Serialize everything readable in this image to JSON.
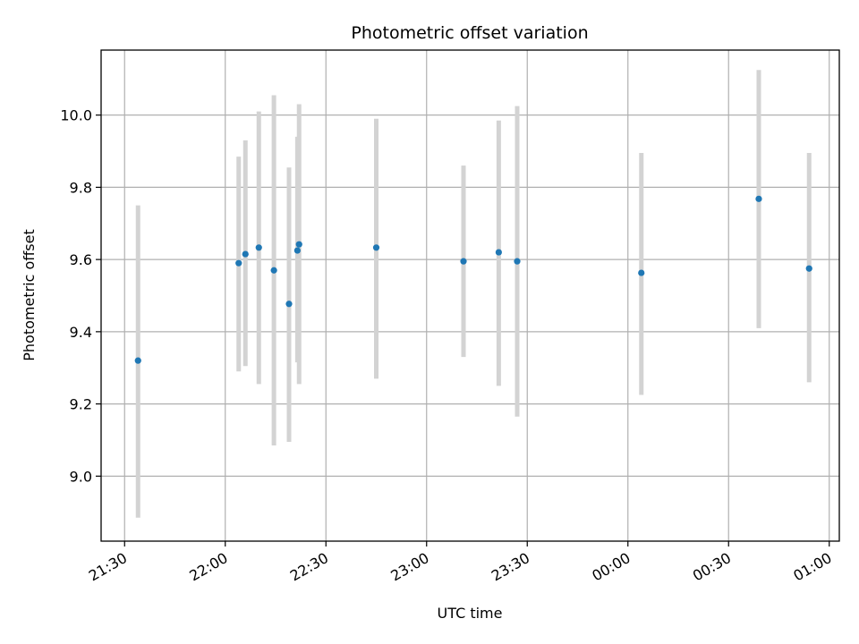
{
  "chart_data": {
    "type": "scatter",
    "title": "Photometric offset variation",
    "xlabel": "UTC time",
    "ylabel": "Photometric offset",
    "x_ticks": [
      "21:30",
      "22:00",
      "22:30",
      "23:00",
      "23:30",
      "00:00",
      "00:30",
      "01:00"
    ],
    "x_tick_minutes": [
      1290,
      1320,
      1350,
      1380,
      1410,
      1440,
      1470,
      1500
    ],
    "y_ticks": [
      "9.0",
      "9.2",
      "9.4",
      "9.6",
      "9.8",
      "10.0"
    ],
    "y_tick_values": [
      9.0,
      9.2,
      9.4,
      9.6,
      9.8,
      10.0
    ],
    "xlim": [
      "21:23",
      "01:03"
    ],
    "ylim": [
      8.82,
      10.18
    ],
    "grid": true,
    "x_minutes": [
      1294,
      1324,
      1326,
      1330,
      1334.5,
      1339,
      1341.5,
      1342,
      1365,
      1391,
      1401.5,
      1407,
      1444,
      1479,
      1494
    ],
    "x_times": [
      "21:34",
      "22:04",
      "22:06",
      "22:10",
      "22:14",
      "22:19",
      "22:21",
      "22:22",
      "22:45",
      "23:11",
      "23:21",
      "23:27",
      "00:04",
      "00:39",
      "00:54"
    ],
    "y": [
      9.32,
      9.59,
      9.615,
      9.633,
      9.57,
      9.477,
      9.625,
      9.642,
      9.633,
      9.595,
      9.62,
      9.595,
      9.563,
      9.768,
      9.575
    ],
    "error_low": [
      8.885,
      9.29,
      9.305,
      9.255,
      9.085,
      9.095,
      9.315,
      9.255,
      9.27,
      9.33,
      9.25,
      9.165,
      9.225,
      9.41,
      9.26
    ],
    "error_high": [
      9.75,
      9.885,
      9.93,
      10.01,
      10.055,
      9.855,
      9.94,
      10.03,
      9.99,
      9.86,
      9.985,
      10.025,
      9.895,
      10.125,
      9.895
    ],
    "marker_color": "#1f77b4",
    "errorbar_color": "#d3d3d3",
    "grid_color": "#b0b0b0"
  }
}
